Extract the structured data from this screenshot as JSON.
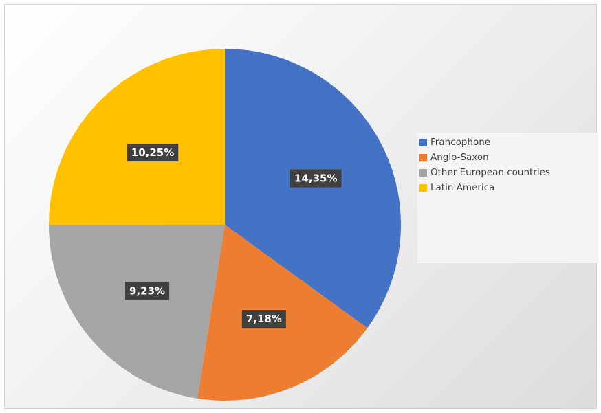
{
  "chart_data": {
    "type": "pie",
    "title": "",
    "categories": [
      "Francophone",
      "Anglo-Saxon",
      "Other European countries",
      "Latin America"
    ],
    "values": [
      14.35,
      7.18,
      9.23,
      10.25
    ],
    "data_labels": [
      "14,35%",
      "7,18%",
      "9,23%",
      "10,25%"
    ],
    "colors": [
      "#4472C4",
      "#ED7D31",
      "#A5A5A5",
      "#FFC000"
    ],
    "start_angle_deg": 0,
    "direction": "clockwise",
    "legend_position": "right"
  }
}
